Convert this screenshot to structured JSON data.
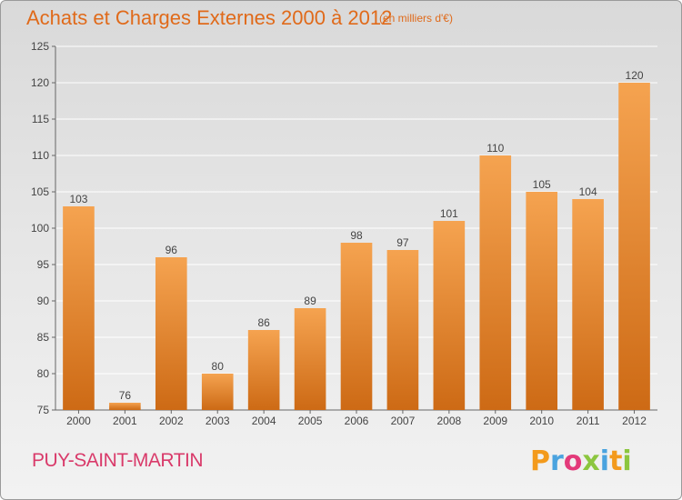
{
  "chart_data": {
    "type": "bar",
    "title": "Achats et Charges Externes 2000 à 2012",
    "subtitle": "(en milliers d'€)",
    "categories": [
      "2000",
      "2001",
      "2002",
      "2003",
      "2004",
      "2005",
      "2006",
      "2007",
      "2008",
      "2009",
      "2010",
      "2011",
      "2012"
    ],
    "values": [
      103,
      76,
      96,
      80,
      86,
      89,
      98,
      97,
      101,
      110,
      105,
      104,
      120
    ],
    "ylim": [
      75,
      125
    ],
    "yticks": [
      75,
      80,
      85,
      90,
      95,
      100,
      105,
      110,
      115,
      120,
      125
    ],
    "xlabel": "",
    "ylabel": "",
    "grid": true,
    "bar_color_top": "#f5a350",
    "bar_color_bottom": "#cd6a15"
  },
  "footer": {
    "place_name": "PUY-SAINT-MARTIN",
    "logo_text": "Proxiti"
  }
}
